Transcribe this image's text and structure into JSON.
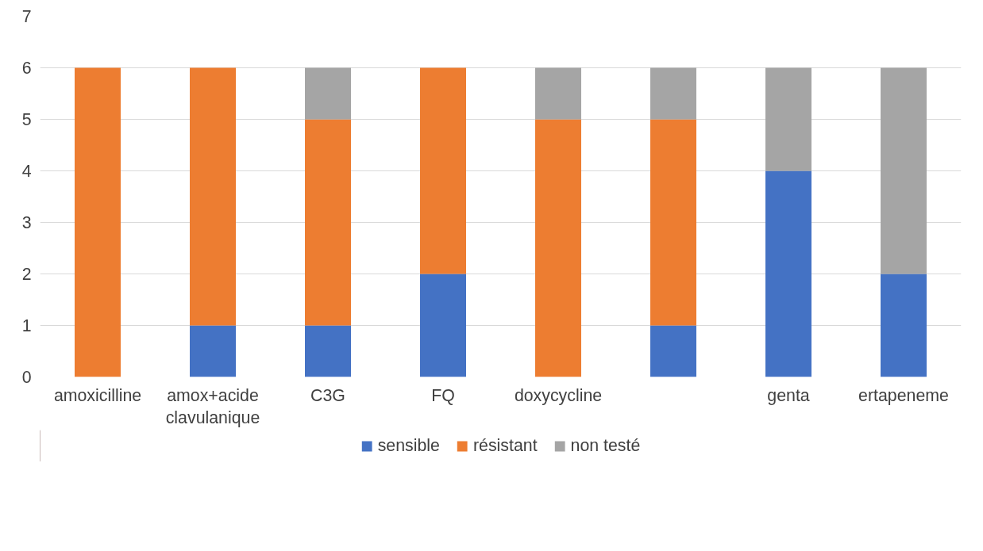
{
  "chart_data": {
    "type": "bar",
    "stacked": true,
    "categories": [
      "amoxicilline",
      "amox+acide clavulanique",
      "C3G",
      "FQ",
      "doxycycline",
      null,
      "genta",
      "ertapeneme"
    ],
    "series": [
      {
        "name": "sensible",
        "color": "#4472c4",
        "values": [
          0,
          1,
          1,
          2,
          0,
          1,
          4,
          2
        ]
      },
      {
        "name": "résistant",
        "color": "#ed7d31",
        "values": [
          6,
          5,
          4,
          4,
          5,
          4,
          0,
          0
        ]
      },
      {
        "name": "non testé",
        "color": "#a5a5a5",
        "values": [
          0,
          0,
          1,
          0,
          1,
          1,
          2,
          4
        ]
      }
    ],
    "ylim": [
      0,
      7
    ],
    "yticks": [
      0,
      1,
      2,
      3,
      4,
      5,
      6,
      7
    ],
    "grid": "y",
    "legend": "bottom"
  }
}
